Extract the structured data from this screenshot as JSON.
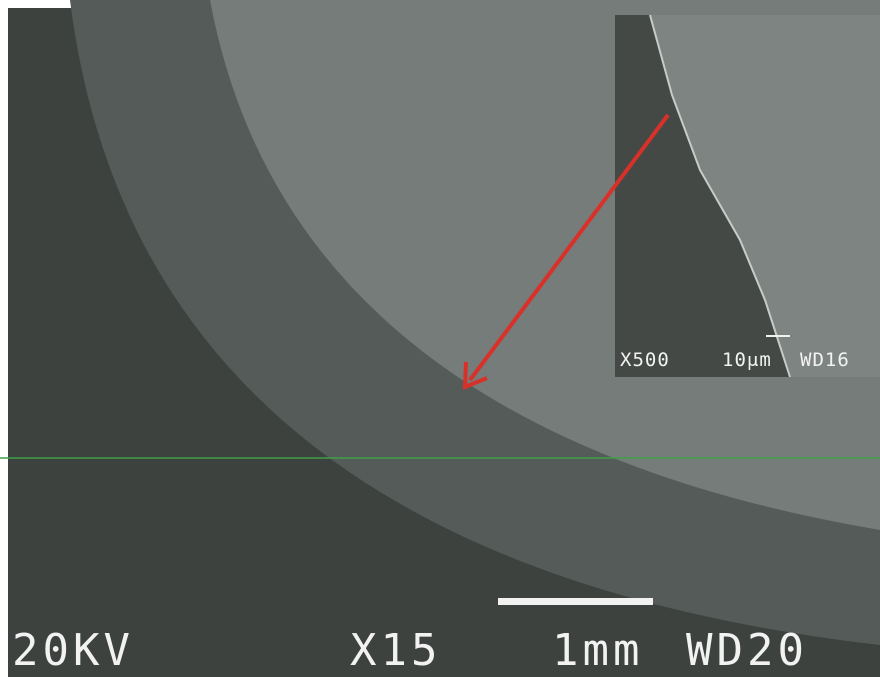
{
  "labels": {
    "voltage": "20KV",
    "magnification": "X15",
    "scale": "1mm",
    "working_distance": "WD20"
  },
  "inset": {
    "magnification": "X500",
    "scale": "10μm",
    "working_distance": "WD16"
  }
}
